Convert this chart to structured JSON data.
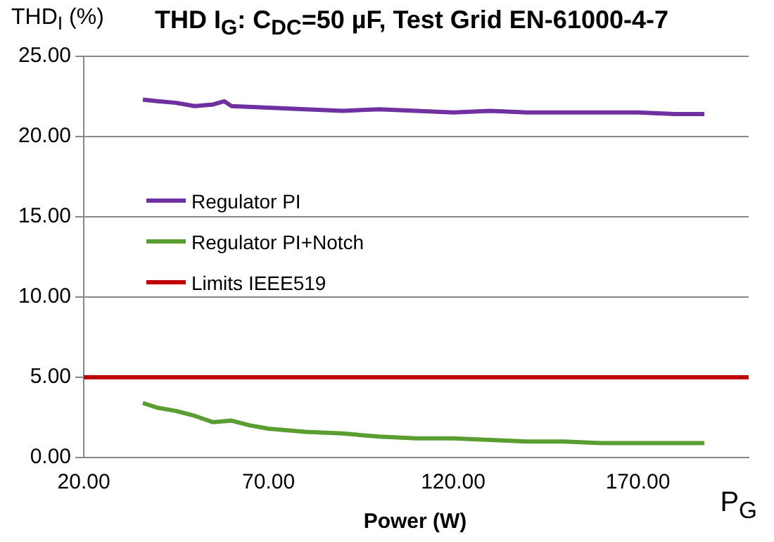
{
  "chart_data": {
    "type": "line",
    "title": "THD I$_{G}$: C$_{DC}$=50 µF, Test Grid EN-61000-4-7",
    "xlabel": "Power (W)",
    "ylabel": "THD$_{I}$ (%)",
    "annotations": [
      "P$_{G}$"
    ],
    "xlim": [
      20,
      200
    ],
    "xticks": [
      {
        "value": 20,
        "label": "20.00"
      },
      {
        "value": 70,
        "label": "70.00"
      },
      {
        "value": 120,
        "label": "120.00"
      },
      {
        "value": 170,
        "label": "170.00"
      }
    ],
    "ylim": [
      0,
      25
    ],
    "yticks": [
      {
        "value": 0,
        "label": "0.00"
      },
      {
        "value": 5,
        "label": "5.00"
      },
      {
        "value": 10,
        "label": "10.00"
      },
      {
        "value": 15,
        "label": "15.00"
      },
      {
        "value": 20,
        "label": "20.00"
      },
      {
        "value": 25,
        "label": "25.00"
      }
    ],
    "grid": "y",
    "legend": "top left",
    "marker": "none",
    "line_style": "solid",
    "series": [
      {
        "name": "Regulator PI",
        "color": "#7030a0",
        "x": [
          36,
          40,
          45,
          50,
          55,
          58,
          60,
          70,
          80,
          90,
          100,
          110,
          120,
          130,
          140,
          150,
          160,
          170,
          180,
          188
        ],
        "values": [
          22.3,
          22.2,
          22.1,
          21.9,
          22.0,
          22.2,
          21.9,
          21.8,
          21.7,
          21.6,
          21.7,
          21.6,
          21.5,
          21.6,
          21.5,
          21.5,
          21.5,
          21.5,
          21.4,
          21.4
        ]
      },
      {
        "name": "Regulator PI+Notch",
        "color": "#5a9e32",
        "x": [
          36,
          40,
          45,
          50,
          55,
          60,
          65,
          70,
          80,
          90,
          100,
          110,
          120,
          130,
          140,
          150,
          160,
          170,
          180,
          188
        ],
        "values": [
          3.4,
          3.1,
          2.9,
          2.6,
          2.2,
          2.3,
          2.0,
          1.8,
          1.6,
          1.5,
          1.3,
          1.2,
          1.2,
          1.1,
          1.0,
          1.0,
          0.9,
          0.9,
          0.9,
          0.9
        ]
      },
      {
        "name": "Limits IEEE519",
        "color": "#c00000",
        "x": [
          20,
          200
        ],
        "values": [
          5,
          5
        ]
      }
    ]
  }
}
